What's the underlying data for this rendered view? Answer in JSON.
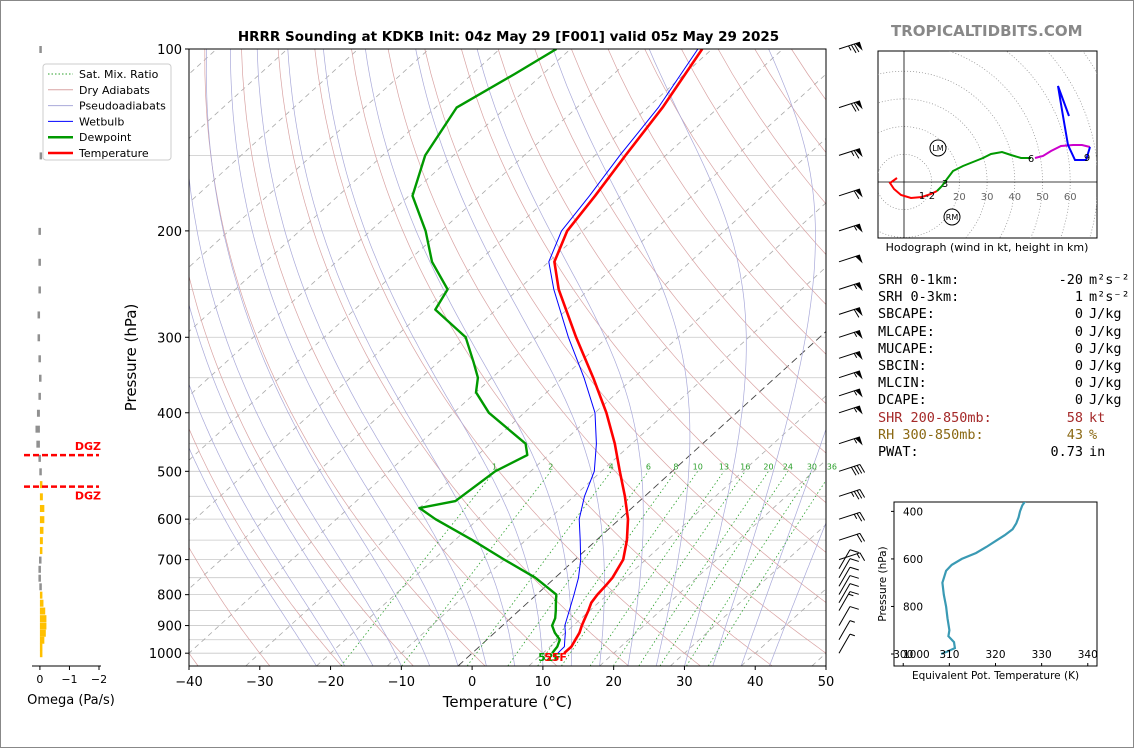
{
  "brand": "TROPICALTIDBITS.COM",
  "chart_data": {
    "type": "skew-t sounding",
    "title": "HRRR Sounding at KDKB Init: 04z May 29 [F001] valid 05z May 29 2025",
    "xlabel": "Temperature (°C)",
    "ylabel": "Pressure (hPa)",
    "x_ticks": [
      "−40",
      "−30",
      "−20",
      "−10",
      "0",
      "10",
      "20",
      "30",
      "40",
      "50"
    ],
    "y_ticks": [
      {
        "p": 100,
        "label": "100"
      },
      {
        "p": 200,
        "label": "200"
      },
      {
        "p": 300,
        "label": "300"
      },
      {
        "p": 400,
        "label": "400"
      },
      {
        "p": 500,
        "label": "500"
      },
      {
        "p": 600,
        "label": "600"
      },
      {
        "p": 700,
        "label": "700"
      },
      {
        "p": 800,
        "label": "800"
      },
      {
        "p": 900,
        "label": "900"
      },
      {
        "p": 1000,
        "label": "1000"
      }
    ],
    "xlim": [
      -40,
      50
    ],
    "ylim": [
      1050,
      100
    ],
    "legend": {
      "placement": "top-left",
      "entries": [
        {
          "name": "Sat. Mix. Ratio",
          "color": "#2ca02c",
          "style": "dotted"
        },
        {
          "name": "Dry Adiabats",
          "color": "#d9a3a3",
          "style": "solid"
        },
        {
          "name": "Pseudoadiabats",
          "color": "#a9a9d9",
          "style": "solid"
        },
        {
          "name": "Wetbulb",
          "color": "#0000ff",
          "style": "solid"
        },
        {
          "name": "Dewpoint",
          "color": "#009900",
          "style": "solid"
        },
        {
          "name": "Temperature",
          "color": "#ff0000",
          "style": "solid"
        }
      ]
    },
    "mixing_ratio_labels": [
      "1",
      "2",
      "4",
      "6",
      "8",
      "10",
      "13",
      "16",
      "20",
      "24",
      "30",
      "36"
    ],
    "temperature": [
      [
        1000,
        13
      ],
      [
        975,
        13
      ],
      [
        950,
        12.5
      ],
      [
        925,
        12
      ],
      [
        900,
        11.2
      ],
      [
        875,
        10.5
      ],
      [
        850,
        9.8
      ],
      [
        825,
        9
      ],
      [
        800,
        8.6
      ],
      [
        775,
        8.4
      ],
      [
        750,
        8.1
      ],
      [
        700,
        6.8
      ],
      [
        650,
        4.3
      ],
      [
        600,
        1.2
      ],
      [
        550,
        -2.8
      ],
      [
        500,
        -7.4
      ],
      [
        450,
        -12.4
      ],
      [
        400,
        -18.4
      ],
      [
        350,
        -25.7
      ],
      [
        300,
        -34.4
      ],
      [
        250,
        -44.3
      ],
      [
        225,
        -49.2
      ],
      [
        200,
        -52.2
      ],
      [
        175,
        -53.7
      ],
      [
        150,
        -55.7
      ],
      [
        125,
        -57.9
      ],
      [
        100,
        -61.4
      ]
    ],
    "dewpoint": [
      [
        1000,
        11.3
      ],
      [
        975,
        11
      ],
      [
        950,
        10.3
      ],
      [
        925,
        8.5
      ],
      [
        900,
        7
      ],
      [
        875,
        6.3
      ],
      [
        850,
        5.2
      ],
      [
        825,
        4
      ],
      [
        800,
        2.8
      ],
      [
        750,
        -2.8
      ],
      [
        700,
        -10
      ],
      [
        650,
        -17.5
      ],
      [
        600,
        -26
      ],
      [
        575,
        -30
      ],
      [
        560,
        -26
      ],
      [
        500,
        -25
      ],
      [
        470,
        -23
      ],
      [
        450,
        -25
      ],
      [
        400,
        -35
      ],
      [
        370,
        -40
      ],
      [
        350,
        -42
      ],
      [
        330,
        -45
      ],
      [
        300,
        -50
      ],
      [
        270,
        -58.6
      ],
      [
        250,
        -60
      ],
      [
        225,
        -66.5
      ],
      [
        200,
        -72.2
      ],
      [
        175,
        -79.5
      ],
      [
        150,
        -84
      ],
      [
        125,
        -87
      ],
      [
        110,
        -84
      ],
      [
        100,
        -82
      ]
    ],
    "wetbulb": [
      [
        1000,
        12.1
      ],
      [
        975,
        12
      ],
      [
        950,
        11
      ],
      [
        925,
        10
      ],
      [
        900,
        8.8
      ],
      [
        850,
        7.1
      ],
      [
        800,
        5.3
      ],
      [
        750,
        3.3
      ],
      [
        700,
        0.8
      ],
      [
        650,
        -2.3
      ],
      [
        600,
        -5.7
      ],
      [
        550,
        -8.5
      ],
      [
        500,
        -11
      ],
      [
        450,
        -15
      ],
      [
        400,
        -20
      ],
      [
        350,
        -27
      ],
      [
        300,
        -35.5
      ],
      [
        250,
        -45
      ],
      [
        225,
        -50
      ],
      [
        200,
        -53
      ],
      [
        175,
        -54.5
      ],
      [
        150,
        -56.5
      ],
      [
        125,
        -58.5
      ],
      [
        100,
        -62
      ]
    ],
    "surface_labels": {
      "dewpoint": "52F",
      "temperature": "55F"
    },
    "dgz_label": "DGZ",
    "dgz_pressures": [
      470,
      530
    ],
    "wind_barbs": [
      {
        "p": 100,
        "speed": 75
      },
      {
        "p": 125,
        "speed": 70
      },
      {
        "p": 150,
        "speed": 65
      },
      {
        "p": 175,
        "speed": 60
      },
      {
        "p": 200,
        "speed": 55
      },
      {
        "p": 225,
        "speed": 50
      },
      {
        "p": 250,
        "speed": 55
      },
      {
        "p": 275,
        "speed": 60
      },
      {
        "p": 300,
        "speed": 55
      },
      {
        "p": 325,
        "speed": 55
      },
      {
        "p": 350,
        "speed": 55
      },
      {
        "p": 375,
        "speed": 55
      },
      {
        "p": 400,
        "speed": 55
      },
      {
        "p": 450,
        "speed": 55
      },
      {
        "p": 500,
        "speed": 40
      },
      {
        "p": 550,
        "speed": 35
      },
      {
        "p": 600,
        "speed": 25
      },
      {
        "p": 650,
        "speed": 20
      },
      {
        "p": 700,
        "speed": 15
      },
      {
        "p": 725,
        "speed": 10
      },
      {
        "p": 750,
        "speed": 10
      },
      {
        "p": 775,
        "speed": 10
      },
      {
        "p": 800,
        "speed": 10
      },
      {
        "p": 825,
        "speed": 10
      },
      {
        "p": 850,
        "speed": 15
      },
      {
        "p": 900,
        "speed": 10
      },
      {
        "p": 950,
        "speed": 5
      },
      {
        "p": 1000,
        "speed": 5
      }
    ],
    "omega": {
      "xlabel": "Omega (Pa/s)",
      "x_ticks": [
        "0",
        "−1",
        "−2"
      ],
      "xlim": [
        0.2,
        -2
      ],
      "values": [
        [
          100,
          0.02
        ],
        [
          150,
          0.01
        ],
        [
          200,
          0.05
        ],
        [
          225,
          0.05
        ],
        [
          250,
          0.05
        ],
        [
          275,
          0.08
        ],
        [
          300,
          0.08
        ],
        [
          325,
          0.05
        ],
        [
          350,
          0.03
        ],
        [
          375,
          0.05
        ],
        [
          400,
          0.1
        ],
        [
          425,
          0.15
        ],
        [
          450,
          0.12
        ],
        [
          475,
          0.05
        ],
        [
          500,
          0.02
        ],
        [
          525,
          -0.05
        ],
        [
          550,
          -0.1
        ],
        [
          575,
          -0.15
        ],
        [
          600,
          -0.15
        ],
        [
          625,
          -0.12
        ],
        [
          650,
          -0.1
        ],
        [
          675,
          -0.05
        ],
        [
          700,
          0.03
        ],
        [
          725,
          0.05
        ],
        [
          750,
          0.05
        ],
        [
          775,
          0.02
        ],
        [
          800,
          -0.05
        ],
        [
          825,
          -0.12
        ],
        [
          850,
          -0.18
        ],
        [
          875,
          -0.22
        ],
        [
          900,
          -0.22
        ],
        [
          925,
          -0.2
        ],
        [
          950,
          -0.15
        ],
        [
          975,
          -0.08
        ],
        [
          1000,
          -0.02
        ]
      ]
    },
    "hodograph": {
      "caption": "Hodograph (wind in kt, height in km)",
      "rings": [
        "20",
        "30",
        "40",
        "50",
        "60"
      ],
      "labels": [
        "1-2",
        "3",
        "6",
        "9"
      ],
      "markers": [
        "LM",
        "RM"
      ]
    },
    "theta_e": {
      "xlabel": "Equivalent Pot. Temperature (K)",
      "ylabel": "Pressure (hPa)",
      "x_ticks": [
        "300",
        "310",
        "320",
        "330",
        "340"
      ],
      "y_ticks": [
        "400",
        "600",
        "800",
        "1000"
      ],
      "xlim": [
        298,
        342
      ],
      "ylim": [
        1000,
        310
      ],
      "values": [
        [
          1000,
          308.2
        ],
        [
          990,
          309.5
        ],
        [
          975,
          311.2
        ],
        [
          950,
          311
        ],
        [
          925,
          309.8
        ],
        [
          900,
          310
        ],
        [
          850,
          309.6
        ],
        [
          800,
          309.3
        ],
        [
          750,
          308.8
        ],
        [
          700,
          308.5
        ],
        [
          650,
          309.3
        ],
        [
          625,
          310.5
        ],
        [
          600,
          312.7
        ],
        [
          575,
          315.8
        ],
        [
          550,
          318
        ],
        [
          525,
          320
        ],
        [
          500,
          322
        ],
        [
          475,
          323.7
        ],
        [
          450,
          324.5
        ],
        [
          425,
          325
        ],
        [
          400,
          325.3
        ],
        [
          375,
          325.8
        ],
        [
          350,
          326.7
        ],
        [
          330,
          327.8
        ],
        [
          310,
          328.5
        ]
      ]
    }
  },
  "params": [
    {
      "key": "SRH 0-1km:",
      "value": "-20",
      "unit": "m²s⁻²",
      "color": "#000000"
    },
    {
      "key": "SRH 0-3km:",
      "value": "1",
      "unit": "m²s⁻²",
      "color": "#000000"
    },
    {
      "key": "SBCAPE:",
      "value": "0",
      "unit": "J/kg",
      "color": "#000000"
    },
    {
      "key": "MLCAPE:",
      "value": "0",
      "unit": "J/kg",
      "color": "#000000"
    },
    {
      "key": "MUCAPE:",
      "value": "0",
      "unit": "J/kg",
      "color": "#000000"
    },
    {
      "key": "SBCIN:",
      "value": "0",
      "unit": "J/kg",
      "color": "#000000"
    },
    {
      "key": "MLCIN:",
      "value": "0",
      "unit": "J/kg",
      "color": "#000000"
    },
    {
      "key": "DCAPE:",
      "value": "0",
      "unit": "J/kg",
      "color": "#000000"
    },
    {
      "key": "SHR 200-850mb:",
      "value": "58",
      "unit": "kt",
      "color": "#a52a2a"
    },
    {
      "key": "RH 300-850mb:",
      "value": "43",
      "unit": "%",
      "color": "#8b6914"
    },
    {
      "key": "PWAT:",
      "value": "0.73",
      "unit": "in",
      "color": "#000000"
    }
  ]
}
